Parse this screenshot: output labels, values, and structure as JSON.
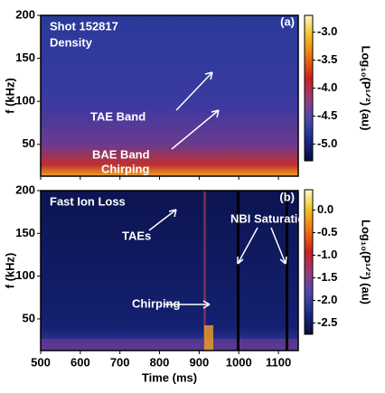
{
  "chart_data": [
    {
      "type": "spectrogram",
      "label": "(a)",
      "ylabel": "f (kHz)",
      "xlim": [
        500,
        1150
      ],
      "xticks": [
        500,
        600,
        700,
        800,
        900,
        1000,
        1100
      ],
      "ylim": [
        13,
        200
      ],
      "yticks": [
        50,
        100,
        150,
        200
      ],
      "annotations": [
        "Shot 152817",
        "Density",
        "TAE Band",
        "BAE Band",
        "Chirping"
      ],
      "clim": [
        -5.3,
        -2.7
      ],
      "cticks": [
        -5.0,
        -4.5,
        -4.0,
        -3.5,
        -3.0
      ],
      "clabel": "Log₁₀(P¹ᐟ²) (au)",
      "colormap": [
        "#0a0a3a",
        "#1a2a8a",
        "#4a4ab0",
        "#9a3a7a",
        "#d02020",
        "#f07010",
        "#f0c020",
        "#fff8c0"
      ]
    },
    {
      "type": "spectrogram",
      "label": "(b)",
      "ylabel": "f (kHz)",
      "xlabel": "Time (ms)",
      "xlim": [
        500,
        1150
      ],
      "xticks": [
        500,
        600,
        700,
        800,
        900,
        1000,
        1100
      ],
      "ylim": [
        13,
        200
      ],
      "yticks": [
        50,
        100,
        150,
        200
      ],
      "annotations": [
        "Fast Ion Loss",
        "TAEs",
        "NBI Saturation",
        "Chirping"
      ],
      "clim": [
        -2.75,
        0.45
      ],
      "cticks": [
        -2.5,
        -2.0,
        -1.5,
        -1.0,
        -0.5,
        0.0
      ],
      "clabel": "Log₁₀(P¹ᐟ²) (au)",
      "colormap": [
        "#0a0a3a",
        "#1a2a8a",
        "#4a4ab0",
        "#9a3a7a",
        "#d02020",
        "#f07010",
        "#f0c020",
        "#fff8c0"
      ]
    }
  ]
}
